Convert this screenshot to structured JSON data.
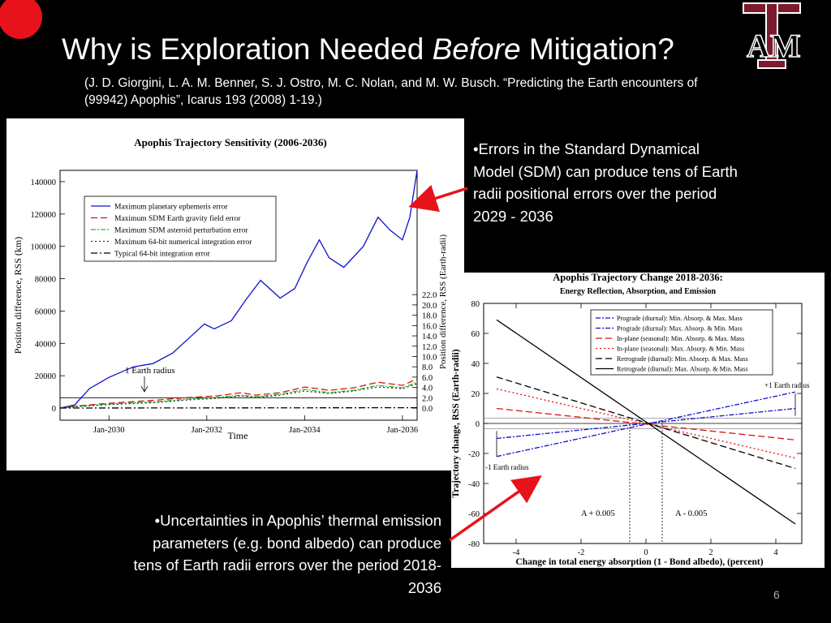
{
  "slide": {
    "title_pre": "Why is Exploration Needed ",
    "title_em": "Before",
    "title_post": " Mitigation?",
    "citation": "(J. D. Giorgini, L. A. M. Benner, S. J. Ostro, M. C. Nolan, and M. W. Busch. “Predicting the Earth encounters of (99942) Apophis”, Icarus 193 (2008) 1-19.)",
    "bullet1": "•Errors in the Standard Dynamical Model (SDM) can produce tens of Earth radii positional errors over the period 2029 - 2036",
    "bullet2": "•Uncertainties in Apophis’ thermal emission parameters (e.g. bond albedo) can produce tens of Earth radii errors over the period 2018-2036",
    "page_number": "6",
    "logo_text": "AM",
    "logo_tm": "TM",
    "colors": {
      "accent_red": "#e8121b",
      "logo_maroon": "#7a1b2e"
    }
  },
  "chart_data": [
    {
      "type": "line",
      "title": "Apophis Trajectory Sensitivity (2006-2036)",
      "xlabel": "Time",
      "ylabel": "Position difference, RSS (km)",
      "ylabel_right": "Position difference, RSS (Earth-radii)",
      "xlim": [
        2029.0,
        2036.3
      ],
      "ylim": [
        -7500,
        147000
      ],
      "x_ticks": [
        {
          "value": 2030,
          "label": "Jan-2030"
        },
        {
          "value": 2032,
          "label": "Jan-2032"
        },
        {
          "value": 2034,
          "label": "Jan-2034"
        },
        {
          "value": 2036,
          "label": "Jan-2036"
        }
      ],
      "y_ticks": [
        0,
        20000,
        40000,
        60000,
        80000,
        100000,
        120000,
        140000
      ],
      "y_ticks_right": [
        "0.0",
        "2.0",
        "4.0",
        "6.0",
        "8.0",
        "10.0",
        "12.0",
        "14.0",
        "16.0",
        "18.0",
        "20.0",
        "22.0"
      ],
      "earth_radius_label": "1 Earth radius",
      "earth_radius_km": 6378,
      "legend": "top-left",
      "series": [
        {
          "name": "Maximum  planetary ephemeris error",
          "color": "#1010cc",
          "dash": "",
          "points": [
            [
              2029.0,
              0
            ],
            [
              2029.3,
              2000
            ],
            [
              2029.6,
              12000
            ],
            [
              2030.0,
              19000
            ],
            [
              2030.5,
              25500
            ],
            [
              2030.9,
              27500
            ],
            [
              2031.3,
              34000
            ],
            [
              2031.7,
              45000
            ],
            [
              2031.95,
              52000
            ],
            [
              2032.15,
              49000
            ],
            [
              2032.5,
              54000
            ],
            [
              2032.8,
              67000
            ],
            [
              2033.1,
              79000
            ],
            [
              2033.5,
              68000
            ],
            [
              2033.8,
              74000
            ],
            [
              2034.05,
              90000
            ],
            [
              2034.3,
              104000
            ],
            [
              2034.5,
              93000
            ],
            [
              2034.8,
              87000
            ],
            [
              2035.2,
              100000
            ],
            [
              2035.5,
              118000
            ],
            [
              2035.75,
              110000
            ],
            [
              2036.0,
              104000
            ],
            [
              2036.15,
              118000
            ],
            [
              2036.3,
              147000
            ]
          ]
        },
        {
          "name": "Maximum SDM Earth gravity field error",
          "color": "#dd1111",
          "dash": "8,4",
          "points": [
            [
              2029.0,
              0
            ],
            [
              2029.4,
              1500
            ],
            [
              2030.0,
              3000
            ],
            [
              2031.0,
              5000
            ],
            [
              2031.6,
              6500
            ],
            [
              2032.2,
              7500
            ],
            [
              2032.7,
              9500
            ],
            [
              2033.0,
              8000
            ],
            [
              2033.5,
              9500
            ],
            [
              2034.0,
              13000
            ],
            [
              2034.5,
              11000
            ],
            [
              2035.0,
              12500
            ],
            [
              2035.5,
              16000
            ],
            [
              2036.0,
              14000
            ],
            [
              2036.3,
              18000
            ]
          ]
        },
        {
          "name": "Maximum SDM asteroid perturbation error",
          "color": "#22bb22",
          "dash": "6,2,2,2",
          "points": [
            [
              2029.0,
              0
            ],
            [
              2029.4,
              1200
            ],
            [
              2030.0,
              2500
            ],
            [
              2031.0,
              4000
            ],
            [
              2031.6,
              5500
            ],
            [
              2032.2,
              6500
            ],
            [
              2032.7,
              8000
            ],
            [
              2033.0,
              7000
            ],
            [
              2033.5,
              8500
            ],
            [
              2034.0,
              11500
            ],
            [
              2034.5,
              9500
            ],
            [
              2035.0,
              11000
            ],
            [
              2035.5,
              14000
            ],
            [
              2036.0,
              12500
            ],
            [
              2036.3,
              16000
            ]
          ]
        },
        {
          "name": "Maximum 64-bit numerical integration error",
          "color": "#333333",
          "dash": "2,3",
          "points": [
            [
              2029.0,
              0
            ],
            [
              2029.4,
              1000
            ],
            [
              2030.0,
              2200
            ],
            [
              2031.0,
              3500
            ],
            [
              2031.6,
              5000
            ],
            [
              2032.2,
              6000
            ],
            [
              2032.7,
              7500
            ],
            [
              2033.0,
              6500
            ],
            [
              2033.5,
              8000
            ],
            [
              2034.0,
              10500
            ],
            [
              2034.5,
              9000
            ],
            [
              2035.0,
              10500
            ],
            [
              2035.5,
              13000
            ],
            [
              2036.0,
              12000
            ],
            [
              2036.3,
              15000
            ]
          ]
        },
        {
          "name": "Typical 64-bit integration error",
          "color": "#000000",
          "dash": "8,3,2,3",
          "points": [
            [
              2029.0,
              0
            ],
            [
              2036.3,
              200
            ]
          ]
        }
      ]
    },
    {
      "type": "line",
      "title": "Apophis Trajectory Change 2018-2036:",
      "subtitle": "Energy Reflection, Absorption, and Emission",
      "xlabel": "Change in total energy absorption (1 - Bond albedo), (percent)",
      "ylabel": "Trajectory change, RSS  (Earth-radii)",
      "xlim": [
        -5,
        4.8
      ],
      "ylim": [
        -80,
        80
      ],
      "x_ticks": [
        -4,
        -2,
        0,
        2,
        4
      ],
      "y_ticks": [
        -80,
        -60,
        -40,
        -20,
        0,
        20,
        40,
        60,
        80
      ],
      "annotations": {
        "plus_earth_radius": "+1 Earth radius",
        "minus_earth_radius": "-1 Earth radius",
        "a_plus": "A + 0.005",
        "a_minus": "A - 0.005"
      },
      "legend": "top-right",
      "series": [
        {
          "name": "Prograde   (diurnal): Min. Absorp. & Max. Mass",
          "color": "#1010cc",
          "dash": "6,2,2,2",
          "points": [
            [
              -4.6,
              -10
            ],
            [
              4.6,
              10
            ]
          ]
        },
        {
          "name": "Prograde   (diurnal): Max. Absorp. & Min. Mass",
          "color": "#1010cc",
          "dash": "6,2,2,2",
          "points": [
            [
              -4.6,
              -22
            ],
            [
              4.6,
              21
            ]
          ]
        },
        {
          "name": "In-plane   (seasonal): Min. Absorp. & Max. Mass",
          "color": "#dd1111",
          "dash": "8,4",
          "points": [
            [
              -4.6,
              10
            ],
            [
              4.6,
              -11
            ]
          ]
        },
        {
          "name": "In-plane   (seasonal): Max. Absorp. & Min. Mass",
          "color": "#dd1111",
          "dash": "2,3",
          "points": [
            [
              -4.6,
              23
            ],
            [
              4.6,
              -23
            ]
          ]
        },
        {
          "name": "Retrograde (diurnal): Min.  Absorp. & Max. Mass",
          "color": "#000000",
          "dash": "8,4",
          "points": [
            [
              -4.6,
              31
            ],
            [
              4.6,
              -30
            ]
          ]
        },
        {
          "name": "Retrograde (diurnal): Max. Absorp. & Min. Mass",
          "color": "#000000",
          "dash": "",
          "points": [
            [
              -4.6,
              69
            ],
            [
              4.6,
              -67
            ]
          ]
        }
      ]
    }
  ]
}
